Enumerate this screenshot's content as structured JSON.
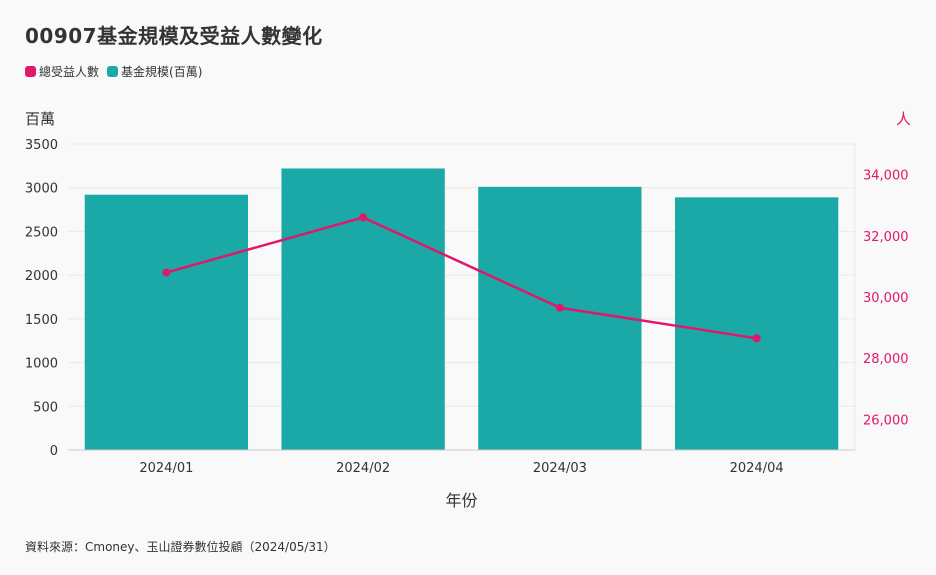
{
  "title": "00907基金規模及受益人數變化",
  "legend": [
    {
      "label": "總受益人數",
      "color": "#e0176a"
    },
    {
      "label": "基金規模(百萬)",
      "color": "#1aa9a6"
    }
  ],
  "left_unit": "百萬",
  "right_unit": "人",
  "source": "資料來源：Cmoney、玉山證券數位投顧（2024/05/31）",
  "chart_data": {
    "type": "bar+line",
    "categories": [
      "2024/01",
      "2024/02",
      "2024/03",
      "2024/04"
    ],
    "xlabel": "年份",
    "series": [
      {
        "name": "基金規模(百萬)",
        "type": "bar",
        "axis": "left",
        "color": "#1aa9a6",
        "values": [
          2920,
          3220,
          3010,
          2890
        ]
      },
      {
        "name": "總受益人數",
        "type": "line",
        "axis": "right",
        "color": "#e0176a",
        "values": [
          30800,
          32600,
          29650,
          28650
        ]
      }
    ],
    "left_axis": {
      "min": 0,
      "max": 3500,
      "ticks": [
        0,
        500,
        1000,
        1500,
        2000,
        2500,
        3000,
        3500
      ],
      "tick_labels": [
        "0",
        "500",
        "1000",
        "1500",
        "2000",
        "2500",
        "3000",
        "3500"
      ]
    },
    "right_axis": {
      "min": 25000,
      "max": 35000,
      "ticks": [
        26000,
        28000,
        30000,
        32000,
        34000
      ],
      "tick_labels": [
        "26,000",
        "28,000",
        "30,000",
        "32,000",
        "34,000"
      ]
    }
  }
}
